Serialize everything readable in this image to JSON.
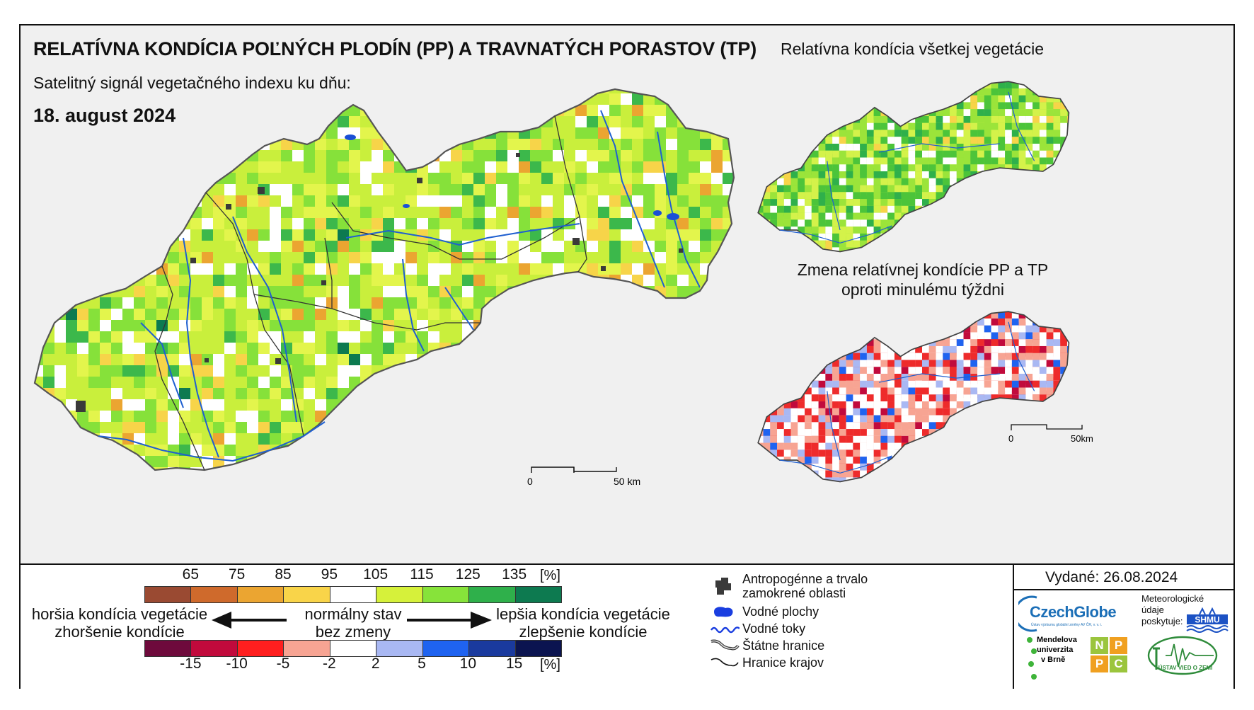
{
  "header": {
    "title": "RELATÍVNA KONDÍCIA POĽNÝCH PLODÍN (PP) A TRAVNATÝCH PORASTOV (TP)",
    "subtitle": "Satelitný signál vegetačného indexu ku dňu:",
    "date": "18. august 2024"
  },
  "insets": {
    "all_vegetation_title": "Relatívna kondícia všetkej vegetácie",
    "change_title_line1": "Zmena relatívnej kondície PP a TP",
    "change_title_line2": "oproti minulému týždni"
  },
  "scale_main": {
    "zero": "0",
    "end": "50 km"
  },
  "scale_inset": {
    "zero": "0",
    "end": "50km"
  },
  "legend": {
    "condition_ticks": [
      "65",
      "75",
      "85",
      "95",
      "105",
      "115",
      "125",
      "135"
    ],
    "condition_unit": "[%]",
    "condition_colors": [
      "#9a4a32",
      "#cf6a2c",
      "#eba531",
      "#f9d449",
      "#ffffff",
      "#d6f13a",
      "#87e33a",
      "#2fb04b",
      "#0d7a50"
    ],
    "change_ticks": [
      "-15",
      "-10",
      "-5",
      "-2",
      "2",
      "5",
      "10",
      "15"
    ],
    "change_unit": "[%]",
    "change_colors": [
      "#6e0a3c",
      "#c10a3c",
      "#ff1f1f",
      "#f7a493",
      "#ffffff",
      "#a9b8f3",
      "#1f63f0",
      "#1a3a9e",
      "#0b1450"
    ],
    "worse_line1": "horšia kondícia vegetácie",
    "worse_line2": "zhoršenie kondície",
    "normal_line1": "normálny stav",
    "normal_line2": "bez zmeny",
    "better_line1": "lepšia kondícia vegetácie",
    "better_line2": "zlepšenie kondície"
  },
  "map_key": {
    "anthropogenic_line1": "Antropogénne a trvalo",
    "anthropogenic_line2": "zamokrené oblasti",
    "water_bodies": "Vodné plochy",
    "water_streams": "Vodné toky",
    "state_borders": "Štátne hranice",
    "region_borders": "Hranice krajov"
  },
  "footer": {
    "issued": "Vydané: 26.08.2024",
    "czechglobe": "CzechGlobe",
    "czechglobe_sub": "Ústav výzkumu globální změny AV ČR, v. v. i.",
    "meteo_line1": "Meteorologické",
    "meteo_line2": "údaje",
    "meteo_line3": "poskytuje:",
    "shmu": "SHMU",
    "mendel_line1": "Mendelova",
    "mendel_line2": "univerzita",
    "mendel_line3": "v Brně",
    "nppc": [
      "N",
      "P",
      "P",
      "C"
    ],
    "uvz": "ÚSTAV VIED O ZEMI"
  },
  "colors": {
    "border": "#111111",
    "river": "#1f5fd0",
    "anthropogenic": "#3a3a3a"
  }
}
